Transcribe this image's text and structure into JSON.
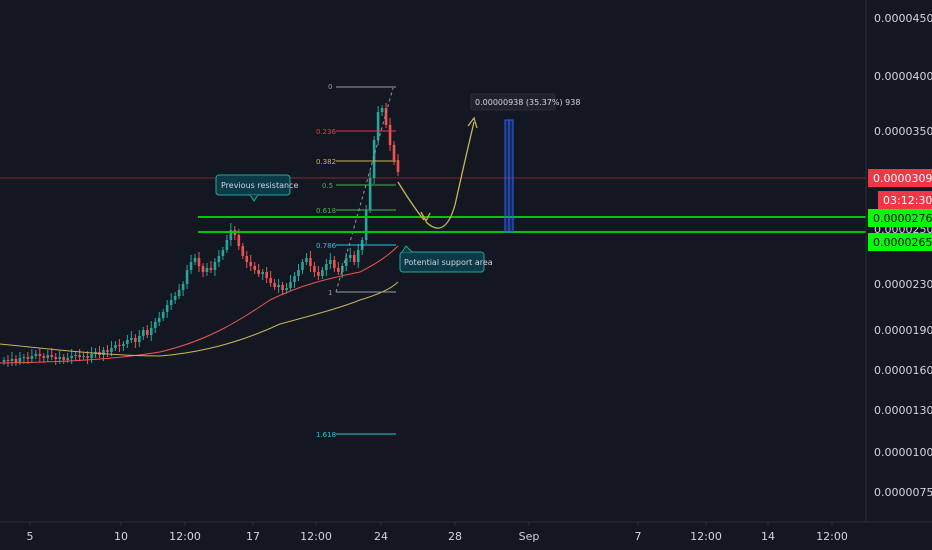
{
  "chart_data": {
    "type": "candlestick",
    "ylim": [
      6e-06,
      4.6e-06
    ],
    "y_ticks": [
      "0.00004500",
      "0.00004000",
      "0.00003500",
      "0.00003000",
      "0.00002500",
      "0.00002300",
      "0.00001900",
      "0.00001600",
      "0.00001300",
      "0.00001000",
      "0.00000750"
    ],
    "x_ticks": [
      "5",
      "10",
      "12:00",
      "17",
      "12:00",
      "24",
      "28",
      "Sep",
      "7",
      "12:00",
      "14",
      "12:00"
    ],
    "price_badges": [
      {
        "label": "0.00003095",
        "color": "#f23645"
      },
      {
        "label": "03:12:30",
        "color": "#f23645"
      },
      {
        "label": "0.00002766",
        "color": "#00ff00"
      },
      {
        "label": "0.00002653",
        "color": "#00ff00"
      }
    ],
    "fib_levels": [
      {
        "label": "0",
        "color": "#9598a1"
      },
      {
        "label": "0.236",
        "color": "#f23645"
      },
      {
        "label": "0.382",
        "color": "#c9b458"
      },
      {
        "label": "0.5",
        "color": "#4caf50"
      },
      {
        "label": "0.618",
        "color": "#4caf50"
      },
      {
        "label": "0.786",
        "color": "#26c6da"
      },
      {
        "label": "1",
        "color": "#9598a1"
      },
      {
        "label": "1.618",
        "color": "#26c6da"
      }
    ],
    "annotations": [
      {
        "text": "Previous resistance"
      },
      {
        "text": "Potential support area"
      },
      {
        "text": "0.00000938 (35.37%) 938"
      }
    ],
    "colors": {
      "up": "#26a69a",
      "down": "#ef5350",
      "ma_fast": "#ef5350",
      "ma_slow": "#c9b458",
      "support": "#00c800",
      "background": "#131722"
    }
  }
}
